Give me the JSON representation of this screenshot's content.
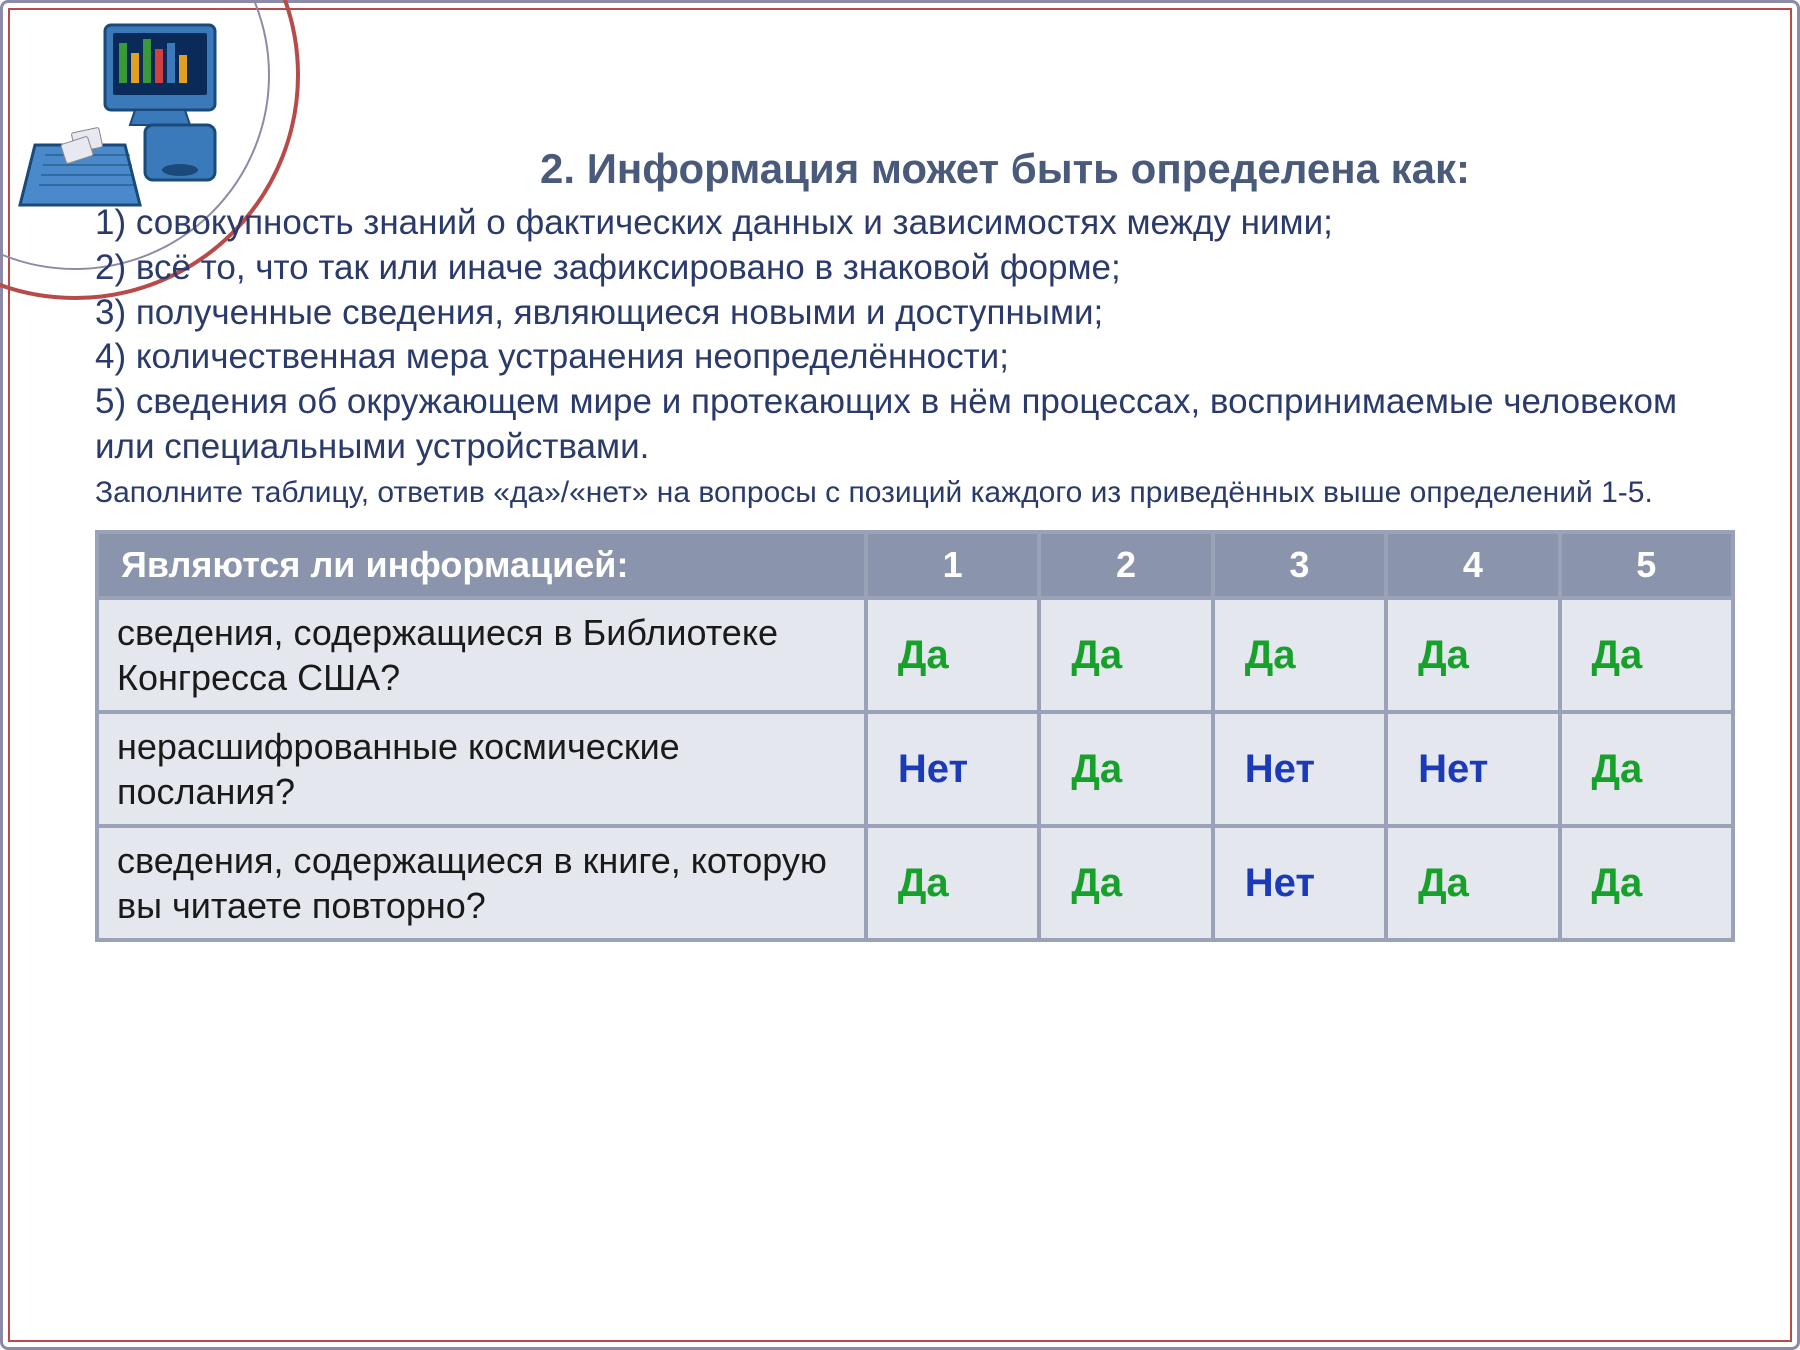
{
  "title": "2. Информация может быть определена как:",
  "definitions": [
    "1) совокупность знаний о фактических данных и зависимостях между ними;",
    "2) всё то, что так или иначе зафиксировано в знаковой форме;",
    "3) полученные сведения, являющиеся новыми и доступными;",
    "4) количественная мера устранения неопределённости;",
    "5) сведения об окружающем мире и протекающих в нём процессах, воспринимаемые человеком или специальными устройствами."
  ],
  "instruction": "Заполните таблицу, ответив «да»/«нет» на вопросы с позиций каждого из приведённых выше определений 1-5.",
  "table": {
    "header_question": "Являются ли информацией:",
    "columns": [
      "1",
      "2",
      "3",
      "4",
      "5"
    ],
    "rows": [
      {
        "question": "сведения, содержащиеся в Библиотеке Конгресса США?",
        "answers": [
          "Да",
          "Да",
          "Да",
          "Да",
          "Да"
        ]
      },
      {
        "question": "нерасшифрованные космические послания?",
        "answers": [
          "Нет",
          "Да",
          "Нет",
          "Нет",
          "Да"
        ]
      },
      {
        "question": "сведения, содержащиеся в книге, которую вы читаете повторно?",
        "answers": [
          "Да",
          "Да",
          "Нет",
          "Да",
          "Да"
        ]
      }
    ],
    "colors": {
      "da": "#17a02a",
      "net": "#1a3ab8",
      "header_bg": "#8b94ad",
      "cell_bg": "#e5e7ee",
      "border": "#9aa2b8"
    }
  },
  "frame": {
    "outer_border": "#8b8ba8",
    "inner_border": "#b84a4a"
  }
}
